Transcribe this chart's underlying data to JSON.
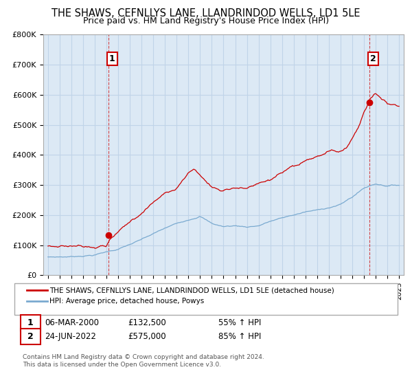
{
  "title": "THE SHAWS, CEFNLLYS LANE, LLANDRINDOD WELLS, LD1 5LE",
  "subtitle": "Price paid vs. HM Land Registry's House Price Index (HPI)",
  "ylim": [
    0,
    800000
  ],
  "yticks": [
    0,
    100000,
    200000,
    300000,
    400000,
    500000,
    600000,
    700000,
    800000
  ],
  "ytick_labels": [
    "£0",
    "£100K",
    "£200K",
    "£300K",
    "£400K",
    "£500K",
    "£600K",
    "£700K",
    "£800K"
  ],
  "xlim_start": 1994.6,
  "xlim_end": 2025.4,
  "sale1_x": 2000.18,
  "sale1_y": 132500,
  "sale2_x": 2022.48,
  "sale2_y": 575000,
  "sale_color": "#cc0000",
  "hpi_color": "#7aaad0",
  "legend_entry1": "THE SHAWS, CEFNLLYS LANE, LLANDRINDOD WELLS, LD1 5LE (detached house)",
  "legend_entry2": "HPI: Average price, detached house, Powys",
  "table_row1": [
    "1",
    "06-MAR-2000",
    "£132,500",
    "55% ↑ HPI"
  ],
  "table_row2": [
    "2",
    "24-JUN-2022",
    "£575,000",
    "85% ↑ HPI"
  ],
  "footnote1": "Contains HM Land Registry data © Crown copyright and database right 2024.",
  "footnote2": "This data is licensed under the Open Government Licence v3.0.",
  "bg_color": "#dce9f5",
  "grid_color": "#c0d4e8",
  "title_fontsize": 10.5,
  "subtitle_fontsize": 9
}
